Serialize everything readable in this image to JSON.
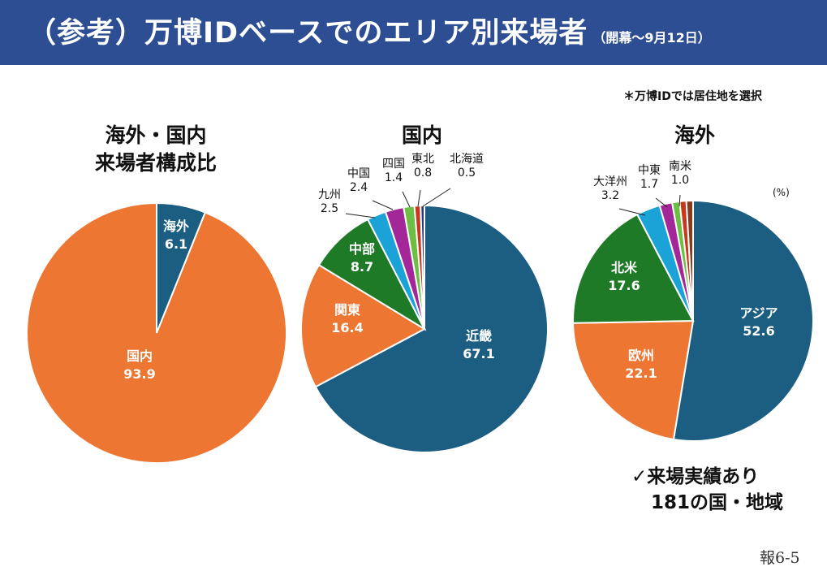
{
  "header": {
    "title": "（参考）万博IDベースでのエリア別来場者",
    "subtitle": "（開幕～9月12日）"
  },
  "note": "＊万博IDでは居住地を選択",
  "unit_label": "(%)",
  "footer": {
    "line1": "✓来場実績あり",
    "line2": "181の国・地域"
  },
  "page_number": "報6-5",
  "colors": {
    "header_bg": "#2d4e93",
    "blue": "#1b5e82",
    "orange": "#ec7632",
    "green": "#1f7a28",
    "cyan": "#1ba3d8",
    "purple": "#a4279a",
    "lime": "#6cbf44",
    "red": "#c7381c",
    "navy": "#2a3b78",
    "brown": "#8b3b1b"
  },
  "chart_data": [
    {
      "type": "pie",
      "title_line1": "海外・国内",
      "title_line2": "来場者構成比",
      "slices": [
        {
          "label": "海外",
          "value": 6.1,
          "value_text": "6.1",
          "color": "#1b5e82"
        },
        {
          "label": "国内",
          "value": 93.9,
          "value_text": "93.9",
          "color": "#ec7632"
        }
      ]
    },
    {
      "type": "pie",
      "title_line1": "国内",
      "slices": [
        {
          "label": "近畿",
          "value": 67.1,
          "value_text": "67.1",
          "color": "#1b5e82"
        },
        {
          "label": "関東",
          "value": 16.4,
          "value_text": "16.4",
          "color": "#ec7632"
        },
        {
          "label": "中部",
          "value": 8.7,
          "value_text": "8.7",
          "color": "#1f7a28"
        },
        {
          "label": "九州",
          "value": 2.5,
          "value_text": "2.5",
          "color": "#1ba3d8"
        },
        {
          "label": "中国",
          "value": 2.4,
          "value_text": "2.4",
          "color": "#a4279a"
        },
        {
          "label": "四国",
          "value": 1.4,
          "value_text": "1.4",
          "color": "#6cbf44"
        },
        {
          "label": "東北",
          "value": 0.8,
          "value_text": "0.8",
          "color": "#c7381c"
        },
        {
          "label": "北海道",
          "value": 0.5,
          "value_text": "0.5",
          "color": "#2a3b78"
        }
      ]
    },
    {
      "type": "pie",
      "title_line1": "海外",
      "slices": [
        {
          "label": "アジア",
          "value": 52.6,
          "value_text": "52.6",
          "color": "#1b5e82"
        },
        {
          "label": "欧州",
          "value": 22.1,
          "value_text": "22.1",
          "color": "#ec7632"
        },
        {
          "label": "北米",
          "value": 17.6,
          "value_text": "17.6",
          "color": "#1f7a28"
        },
        {
          "label": "大洋州",
          "value": 3.2,
          "value_text": "3.2",
          "color": "#1ba3d8"
        },
        {
          "label": "中東",
          "value": 1.7,
          "value_text": "1.7",
          "color": "#a4279a"
        },
        {
          "label": "南米",
          "value": 1.0,
          "value_text": "1.0",
          "color": "#6cbf44"
        },
        {
          "label": "",
          "value": 0.9,
          "value_text": "",
          "color": "#c7381c"
        },
        {
          "label": "",
          "value": 0.9,
          "value_text": "",
          "color": "#8b3b1b"
        }
      ]
    }
  ]
}
